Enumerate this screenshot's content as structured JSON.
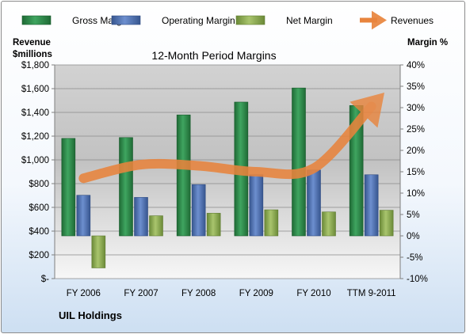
{
  "chart_data": {
    "type": "bar",
    "title": "12-Month Period Margins",
    "company": "UIL Holdings",
    "left_axis": {
      "label_line1": "Revenue",
      "label_line2": "$millions",
      "range": [
        0,
        1800
      ],
      "ticks": [
        "$-",
        "$200",
        "$400",
        "$600",
        "$800",
        "$1,000",
        "$1,200",
        "$1,400",
        "$1,600",
        "$1,800"
      ]
    },
    "right_axis": {
      "label": "Margin %",
      "range": [
        -10,
        40
      ],
      "ticks": [
        "-10%",
        "-5%",
        "0%",
        "5%",
        "10%",
        "15%",
        "20%",
        "25%",
        "30%",
        "35%",
        "40%"
      ]
    },
    "categories": [
      "FY 2006",
      "FY 2007",
      "FY 2008",
      "FY 2009",
      "FY 2010",
      "TTM 9-2011"
    ],
    "series": [
      {
        "name": "Gross Margin",
        "type": "bar",
        "axis": "right",
        "color": "#2e8b4a",
        "values": [
          22.8,
          23.0,
          28.3,
          31.3,
          34.6,
          30.5
        ]
      },
      {
        "name": "Operating Margin",
        "type": "bar",
        "axis": "right",
        "color": "#4f73b8",
        "values": [
          9.5,
          9.0,
          12.0,
          14.3,
          15.4,
          14.3
        ]
      },
      {
        "name": "Net Margin",
        "type": "bar",
        "axis": "right",
        "color": "#8dad52",
        "values": [
          -7.5,
          4.7,
          5.3,
          6.1,
          5.6,
          6.0
        ]
      },
      {
        "name": "Revenues",
        "type": "line",
        "axis": "left",
        "color": "#e8843d",
        "values": [
          845,
          960,
          950,
          900,
          930,
          1450
        ]
      }
    ],
    "grid": true,
    "legend": "top"
  }
}
